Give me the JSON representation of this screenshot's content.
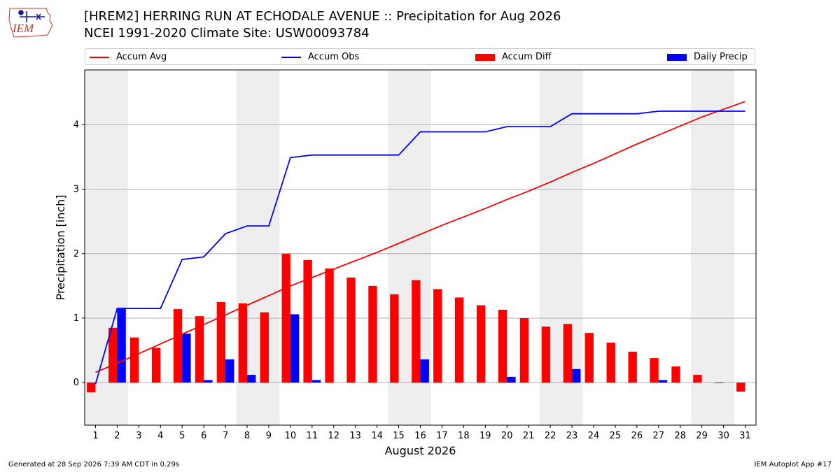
{
  "header": {
    "title_line1": "[HREM2] HERRING RUN AT ECHODALE AVENUE :: Precipitation for Aug 2026",
    "title_line2": "NCEI 1991-2020 Climate Site: USW00093784",
    "logo_text": "IEM"
  },
  "legend": {
    "items": [
      {
        "label": "Accum Avg",
        "kind": "line",
        "color": "#ff0000"
      },
      {
        "label": "Accum Obs",
        "kind": "line",
        "color": "#0000ff"
      },
      {
        "label": "Accum Diff",
        "kind": "bar",
        "color": "#ff0000"
      },
      {
        "label": "Daily Precip",
        "kind": "bar",
        "color": "#0000ff"
      }
    ],
    "placement": "top, above plot area"
  },
  "footer": {
    "left": "Generated at 28 Sep 2026 7:39 AM CDT in 0.29s",
    "right": "IEM Autoplot App #17"
  },
  "chart_data": {
    "type": "bar",
    "xlabel": "August 2026",
    "ylabel": "Precipitation [inch]",
    "x": [
      1,
      2,
      3,
      4,
      5,
      6,
      7,
      8,
      9,
      10,
      11,
      12,
      13,
      14,
      15,
      16,
      17,
      18,
      19,
      20,
      21,
      22,
      23,
      24,
      25,
      26,
      27,
      28,
      29,
      30,
      31
    ],
    "xlim": [
      0.5,
      31.5
    ],
    "ylim": [
      -0.66,
      4.85
    ],
    "yticks": [
      0,
      1,
      2,
      3,
      4
    ],
    "grid": "horizontal",
    "weekend_shading": [
      [
        1,
        2
      ],
      [
        8,
        9
      ],
      [
        15,
        16
      ],
      [
        22,
        23
      ],
      [
        29,
        30
      ]
    ],
    "weekend_color": "#eeeeee",
    "series": [
      {
        "name": "Accum Avg",
        "kind": "line",
        "color": "#ff0000",
        "values": [
          0.16,
          0.3,
          0.45,
          0.6,
          0.75,
          0.9,
          1.05,
          1.2,
          1.35,
          1.5,
          1.63,
          1.76,
          1.89,
          2.02,
          2.16,
          2.3,
          2.44,
          2.57,
          2.7,
          2.84,
          2.97,
          3.11,
          3.26,
          3.4,
          3.55,
          3.7,
          3.84,
          3.98,
          4.12,
          4.24,
          4.36
        ]
      },
      {
        "name": "Accum Obs",
        "kind": "line",
        "color": "#0000ff",
        "values": [
          -0.02,
          1.15,
          1.15,
          1.15,
          1.91,
          1.95,
          2.31,
          2.43,
          2.43,
          3.49,
          3.53,
          3.53,
          3.53,
          3.53,
          3.53,
          3.89,
          3.89,
          3.89,
          3.89,
          3.97,
          3.97,
          3.97,
          4.17,
          4.17,
          4.17,
          4.17,
          4.21,
          4.21,
          4.21,
          4.21,
          4.21
        ]
      },
      {
        "name": "Accum Diff",
        "kind": "bar",
        "color": "#ff0000",
        "values": [
          -0.15,
          0.85,
          0.7,
          0.54,
          1.14,
          1.03,
          1.25,
          1.23,
          1.09,
          2.0,
          1.9,
          1.77,
          1.63,
          1.5,
          1.37,
          1.59,
          1.45,
          1.32,
          1.2,
          1.13,
          1.0,
          0.87,
          0.91,
          0.77,
          0.62,
          0.48,
          0.38,
          0.25,
          0.12,
          -0.01,
          -0.14
        ]
      },
      {
        "name": "Daily Precip",
        "kind": "bar",
        "color": "#0000ff",
        "values": [
          0.0,
          1.16,
          0.0,
          0.0,
          0.76,
          0.04,
          0.36,
          0.12,
          0.0,
          1.06,
          0.04,
          0.0,
          0.0,
          0.0,
          0.0,
          0.36,
          0.0,
          0.0,
          0.0,
          0.09,
          0.0,
          0.0,
          0.21,
          0.0,
          0.0,
          0.0,
          0.04,
          0.0,
          0.0,
          0.0,
          0.0
        ]
      }
    ]
  }
}
